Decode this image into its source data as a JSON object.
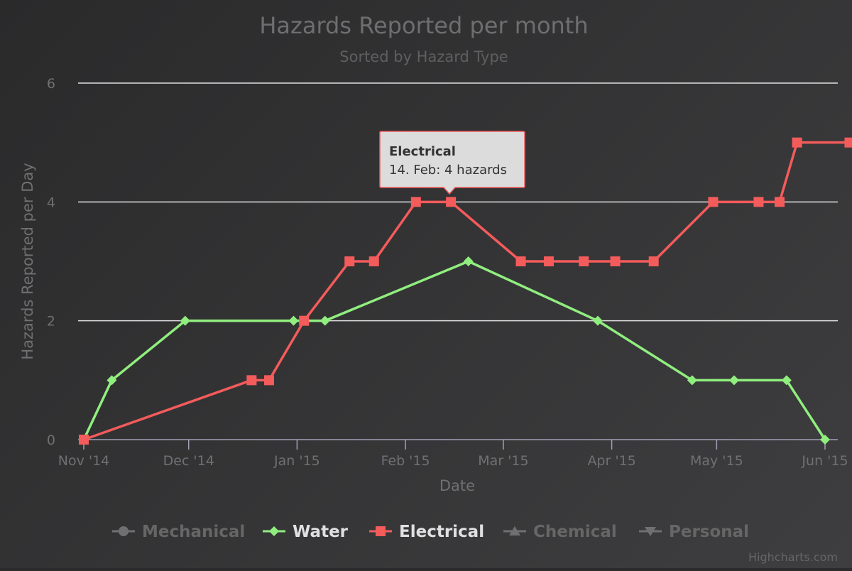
{
  "chart_data": {
    "type": "line",
    "title": "Hazards Reported per month",
    "subtitle": "Sorted by Hazard Type",
    "xlabel": "Date",
    "ylabel": "Hazards Reported per Day",
    "xlim": [
      "2014-11-01",
      "2015-06-01"
    ],
    "ylim": [
      0,
      6
    ],
    "x_ticks": [
      "Nov '14",
      "Dec '14",
      "Jan '15",
      "Feb '15",
      "Mar '15",
      "Apr '15",
      "May '15",
      "Jun '15"
    ],
    "y_ticks": [
      "0",
      "2",
      "4",
      "6"
    ],
    "grid": true,
    "legend_position": "bottom",
    "legend": [
      {
        "name": "Mechanical",
        "color": "#707073",
        "marker": "circle",
        "active": false
      },
      {
        "name": "Water",
        "color": "#90ee7e",
        "marker": "diamond",
        "active": true
      },
      {
        "name": "Electrical",
        "color": "#f45b5b",
        "marker": "square",
        "active": true
      },
      {
        "name": "Chemical",
        "color": "#707073",
        "marker": "triangle",
        "active": false
      },
      {
        "name": "Personal",
        "color": "#707073",
        "marker": "triangle-down",
        "active": false
      }
    ],
    "series": [
      {
        "name": "Water",
        "color": "#90ee7e",
        "marker": "diamond",
        "points": [
          {
            "x": "2014-11-01",
            "y": 0
          },
          {
            "x": "2014-11-09",
            "y": 1
          },
          {
            "x": "2014-11-30",
            "y": 2
          },
          {
            "x": "2014-12-31",
            "y": 2
          },
          {
            "x": "2015-01-09",
            "y": 2
          },
          {
            "x": "2015-02-19",
            "y": 3
          },
          {
            "x": "2015-03-28",
            "y": 2
          },
          {
            "x": "2015-04-24",
            "y": 1
          },
          {
            "x": "2015-05-06",
            "y": 1
          },
          {
            "x": "2015-05-21",
            "y": 1
          },
          {
            "x": "2015-06-01",
            "y": 0
          }
        ]
      },
      {
        "name": "Electrical",
        "color": "#f45b5b",
        "marker": "square",
        "points": [
          {
            "x": "2014-11-01",
            "y": 0
          },
          {
            "x": "2014-12-19",
            "y": 1
          },
          {
            "x": "2014-12-24",
            "y": 1
          },
          {
            "x": "2015-01-03",
            "y": 2
          },
          {
            "x": "2015-01-16",
            "y": 3
          },
          {
            "x": "2015-01-23",
            "y": 3
          },
          {
            "x": "2015-02-04",
            "y": 4
          },
          {
            "x": "2015-02-14",
            "y": 4
          },
          {
            "x": "2015-03-06",
            "y": 3
          },
          {
            "x": "2015-03-14",
            "y": 3
          },
          {
            "x": "2015-03-24",
            "y": 3
          },
          {
            "x": "2015-04-02",
            "y": 3
          },
          {
            "x": "2015-04-13",
            "y": 3
          },
          {
            "x": "2015-04-30",
            "y": 4
          },
          {
            "x": "2015-05-13",
            "y": 4
          },
          {
            "x": "2015-05-19",
            "y": 4
          },
          {
            "x": "2015-05-24",
            "y": 5
          },
          {
            "x": "2015-06-08",
            "y": 5
          }
        ]
      }
    ],
    "tooltip": {
      "series": "Electrical",
      "x": "2015-02-14",
      "y": 4,
      "title": "Electrical",
      "body": "14. Feb: 4 hazards"
    },
    "credits": "Highcharts.com"
  }
}
